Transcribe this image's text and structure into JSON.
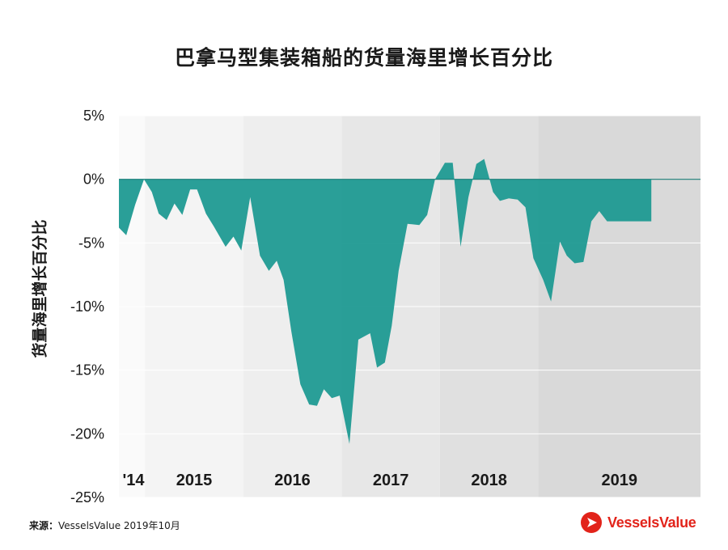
{
  "chart_data": {
    "type": "area",
    "title": "巴拿马型集装箱船的货量海里增长百分比",
    "ylabel": "货量海里增长百分比",
    "xlabel": "",
    "ylim": [
      -25,
      5
    ],
    "yticks": [
      5,
      0,
      -5,
      -10,
      -15,
      -20,
      -25
    ],
    "ytick_labels": [
      "5%",
      "0%",
      "-5%",
      "-10%",
      "-15%",
      "-20%",
      "-25%"
    ],
    "x_range": [
      2013.985,
      2019.9
    ],
    "year_bands": [
      {
        "label": "'14",
        "start": 2013.985,
        "end": 2014.25
      },
      {
        "label": "2015",
        "start": 2014.25,
        "end": 2015.25
      },
      {
        "label": "2016",
        "start": 2015.25,
        "end": 2016.25
      },
      {
        "label": "2017",
        "start": 2016.25,
        "end": 2017.25
      },
      {
        "label": "2018",
        "start": 2017.25,
        "end": 2018.25
      },
      {
        "label": "2019",
        "start": 2018.25,
        "end": 2019.9
      }
    ],
    "series": [
      {
        "color": "#1f9a92",
        "x": [
          2013.985,
          2014.06,
          2014.15,
          2014.24,
          2014.32,
          2014.39,
          2014.47,
          2014.55,
          2014.63,
          2014.71,
          2014.78,
          2014.87,
          2014.95,
          2015.07,
          2015.15,
          2015.23,
          2015.32,
          2015.42,
          2015.51,
          2015.59,
          2015.66,
          2015.74,
          2015.83,
          2015.92,
          2016.0,
          2016.07,
          2016.15,
          2016.23,
          2016.33,
          2016.42,
          2016.54,
          2016.61,
          2016.69,
          2016.76,
          2016.83,
          2016.92,
          2017.04,
          2017.12,
          2017.2,
          2017.3,
          2017.38,
          2017.46,
          2017.54,
          2017.62,
          2017.7,
          2017.79,
          2017.86,
          2017.95,
          2018.04,
          2018.12,
          2018.2,
          2018.3,
          2018.38,
          2018.47,
          2018.54,
          2018.62,
          2018.71,
          2018.79,
          2018.87,
          2018.95,
          2019.04,
          2019.14,
          2019.22,
          2019.28,
          2019.36,
          2019.4
        ],
        "values": [
          -3.8,
          -4.4,
          -2.0,
          0.0,
          -1.0,
          -2.7,
          -3.2,
          -1.9,
          -2.8,
          -0.8,
          -0.8,
          -2.7,
          -3.7,
          -5.3,
          -4.5,
          -5.6,
          -1.4,
          -6.0,
          -7.2,
          -6.4,
          -7.9,
          -12.0,
          -16.1,
          -17.7,
          -17.8,
          -16.5,
          -17.2,
          -17.0,
          -20.8,
          -12.6,
          -12.1,
          -14.8,
          -14.4,
          -11.5,
          -7.2,
          -3.5,
          -3.6,
          -2.8,
          0.0,
          1.3,
          1.3,
          -5.3,
          -1.4,
          1.2,
          1.6,
          -1.0,
          -1.7,
          -1.5,
          -1.6,
          -2.2,
          -6.2,
          -7.9,
          -9.6,
          -4.9,
          -6.0,
          -6.6,
          -6.5,
          -3.3,
          -2.5,
          -3.3,
          -3.3,
          -3.3,
          -3.3,
          -3.3,
          -3.3,
          -3.3
        ]
      }
    ]
  },
  "source": {
    "label": "来源：",
    "text": "VesselsValue 2019年10月"
  },
  "logo": {
    "text": "VesselsValue",
    "color": "#e2231a",
    "icon": "vesselsvalue-triangle-icon"
  }
}
